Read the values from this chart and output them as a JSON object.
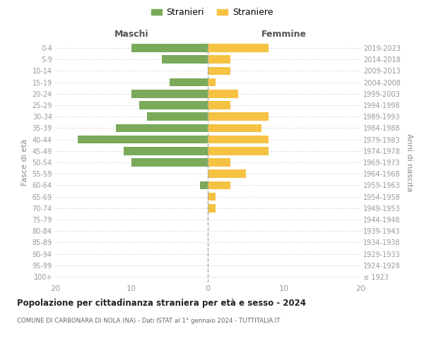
{
  "age_groups": [
    "100+",
    "95-99",
    "90-94",
    "85-89",
    "80-84",
    "75-79",
    "70-74",
    "65-69",
    "60-64",
    "55-59",
    "50-54",
    "45-49",
    "40-44",
    "35-39",
    "30-34",
    "25-29",
    "20-24",
    "15-19",
    "10-14",
    "5-9",
    "0-4"
  ],
  "birth_years": [
    "≤ 1923",
    "1924-1928",
    "1929-1933",
    "1934-1938",
    "1939-1943",
    "1944-1948",
    "1949-1953",
    "1954-1958",
    "1959-1963",
    "1964-1968",
    "1969-1973",
    "1974-1978",
    "1979-1983",
    "1984-1988",
    "1989-1993",
    "1994-1998",
    "1999-2003",
    "2004-2008",
    "2009-2013",
    "2014-2018",
    "2019-2023"
  ],
  "males": [
    0,
    0,
    0,
    0,
    0,
    0,
    0,
    0,
    1,
    0,
    10,
    11,
    17,
    12,
    8,
    9,
    10,
    5,
    0,
    6,
    10
  ],
  "females": [
    0,
    0,
    0,
    0,
    0,
    0,
    1,
    1,
    3,
    5,
    3,
    8,
    8,
    7,
    8,
    3,
    4,
    1,
    3,
    3,
    8
  ],
  "male_color": "#7aaa5a",
  "female_color": "#f5c242",
  "title": "Popolazione per cittadinanza straniera per età e sesso - 2024",
  "subtitle": "COMUNE DI CARBONARA DI NOLA (NA) - Dati ISTAT al 1° gennaio 2024 - TUTTITALIA.IT",
  "xlabel_left": "Maschi",
  "xlabel_right": "Femmine",
  "ylabel_left": "Fasce di età",
  "ylabel_right": "Anni di nascita",
  "legend_male": "Stranieri",
  "legend_female": "Straniere",
  "xlim": 20,
  "background_color": "#ffffff",
  "grid_color": "#dddddd"
}
